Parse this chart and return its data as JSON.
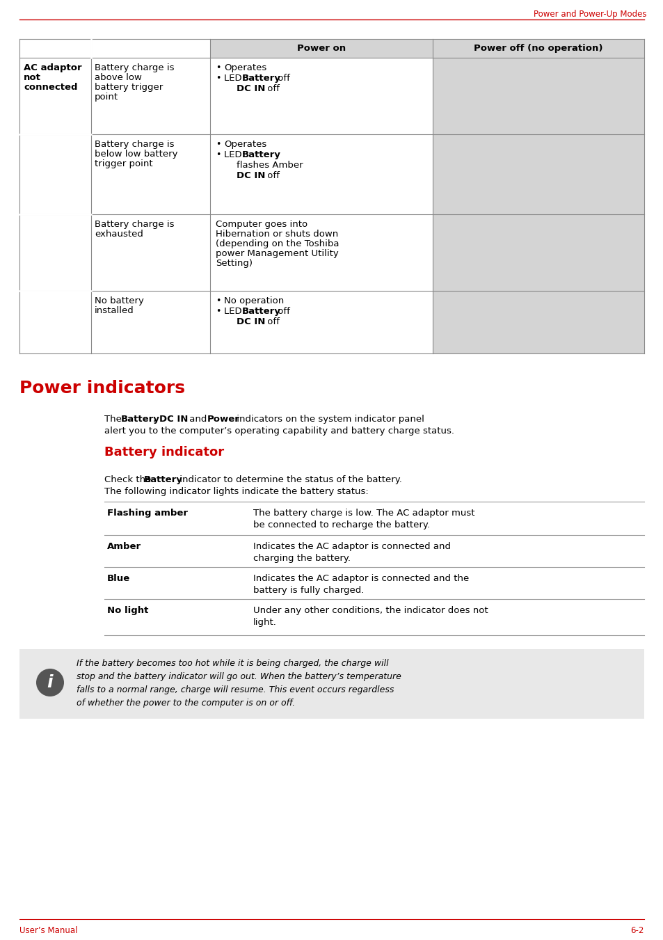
{
  "page_title": "Power and Power-Up Modes",
  "section_title": "Power indicators",
  "subsection_title": "Battery indicator",
  "red": "#cc0000",
  "black": "#000000",
  "white": "#ffffff",
  "gray_header": "#d4d4d4",
  "gray_cell": "#d4d4d4",
  "note_bg": "#e8e8e8",
  "footer_left": "User’s Manual",
  "footer_right": "6-2"
}
